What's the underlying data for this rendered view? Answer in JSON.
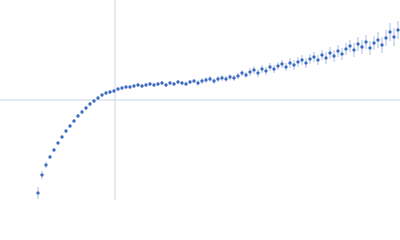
{
  "chart_data": {
    "type": "scatter",
    "x": [
      38,
      42,
      46,
      50,
      54,
      58,
      62,
      66,
      70,
      74,
      78,
      82,
      86,
      90,
      94,
      98,
      102,
      106,
      110,
      114,
      118,
      122,
      126,
      130,
      134,
      138,
      142,
      146,
      150,
      154,
      158,
      162,
      166,
      170,
      174,
      178,
      182,
      186,
      190,
      194,
      198,
      202,
      206,
      210,
      214,
      218,
      222,
      226,
      230,
      234,
      238,
      242,
      246,
      250,
      254,
      258,
      262,
      266,
      270,
      274,
      278,
      282,
      286,
      290,
      294,
      298,
      302,
      306,
      310,
      314,
      318,
      322,
      326,
      330,
      334,
      338,
      342,
      346,
      350,
      354,
      358,
      362,
      366,
      370,
      374,
      378,
      382,
      386,
      390,
      394,
      398
    ],
    "series": [
      {
        "color": "#3a6bbf",
        "error_color": "#a9bde0",
        "values": [
          7,
          25,
          35,
          43,
          50,
          57,
          63,
          69,
          74,
          79,
          84,
          88,
          92,
          96,
          99,
          102,
          105,
          107,
          108,
          109,
          111,
          112,
          113,
          113,
          114,
          115,
          114,
          115,
          116,
          115,
          116,
          117,
          115,
          117,
          116,
          118,
          117,
          116,
          118,
          119,
          117,
          119,
          120,
          121,
          119,
          121,
          122,
          121,
          123,
          122,
          124,
          127,
          125,
          128,
          130,
          127,
          131,
          129,
          133,
          131,
          134,
          136,
          133,
          137,
          135,
          138,
          140,
          137,
          141,
          143,
          140,
          145,
          142,
          147,
          144,
          149,
          146,
          151,
          154,
          150,
          156,
          153,
          158,
          152,
          157,
          160,
          155,
          162,
          168,
          163,
          170
        ],
        "errors": [
          6,
          4,
          3,
          2,
          2,
          2,
          2,
          2,
          2,
          2,
          2,
          2,
          2,
          2,
          2,
          2,
          2,
          2,
          2,
          2,
          2,
          2,
          2,
          2,
          2,
          2,
          2,
          2,
          2,
          2,
          2,
          2,
          2,
          2,
          2,
          2,
          2,
          2,
          2,
          2,
          3,
          3,
          3,
          3,
          3,
          3,
          3,
          3,
          3,
          3,
          3,
          3,
          3,
          4,
          4,
          4,
          4,
          4,
          4,
          4,
          4,
          4,
          4,
          5,
          5,
          5,
          5,
          5,
          5,
          5,
          5,
          5,
          6,
          6,
          6,
          6,
          6,
          6,
          6,
          7,
          7,
          7,
          7,
          7,
          7,
          8,
          8,
          8,
          9,
          9,
          9
        ]
      }
    ],
    "xlim": [
      0,
      400
    ],
    "ylim": [
      0,
      200
    ],
    "axvline": 115,
    "axhline": 100,
    "line_color": "#c8d4e3"
  }
}
